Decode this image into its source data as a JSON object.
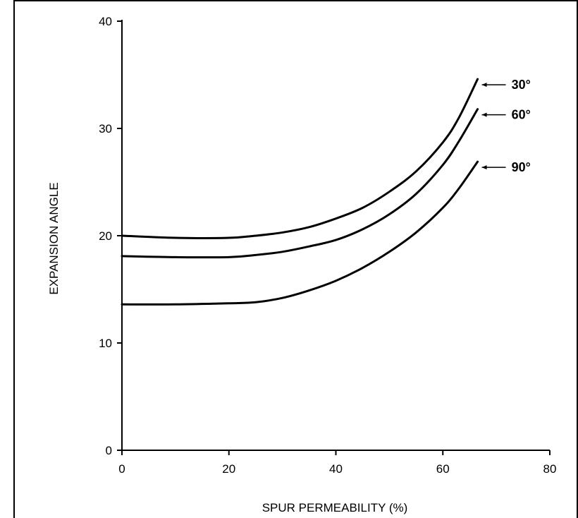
{
  "chart_data": {
    "type": "line",
    "title": "",
    "xlabel": "SPUR PERMEABILITY (%)",
    "ylabel": "EXPANSION ANGLE",
    "xlim": [
      0,
      80
    ],
    "ylim": [
      0,
      40
    ],
    "x_ticks": [
      "0",
      "20",
      "40",
      "60",
      "80"
    ],
    "y_ticks": [
      "0",
      "10",
      "20",
      "30",
      "40"
    ],
    "grid": false,
    "series": [
      {
        "name": "30°",
        "x": [
          0,
          10,
          20,
          25,
          30,
          35,
          40,
          45,
          50,
          55,
          60,
          63,
          66.5
        ],
        "y": [
          20.0,
          19.8,
          19.8,
          20.0,
          20.3,
          20.8,
          21.6,
          22.6,
          24.1,
          26.0,
          28.7,
          31.0,
          34.6
        ]
      },
      {
        "name": "60°",
        "x": [
          0,
          10,
          20,
          25,
          30,
          35,
          40,
          45,
          50,
          55,
          60,
          63,
          66.5
        ],
        "y": [
          18.1,
          18.0,
          18.0,
          18.2,
          18.5,
          19.0,
          19.6,
          20.6,
          22.0,
          23.9,
          26.6,
          28.8,
          31.8
        ]
      },
      {
        "name": "90°",
        "x": [
          0,
          10,
          20,
          25,
          30,
          35,
          40,
          45,
          50,
          55,
          60,
          63,
          66.5
        ],
        "y": [
          13.6,
          13.6,
          13.7,
          13.8,
          14.2,
          14.9,
          15.8,
          17.0,
          18.5,
          20.3,
          22.6,
          24.4,
          26.9
        ]
      }
    ]
  }
}
